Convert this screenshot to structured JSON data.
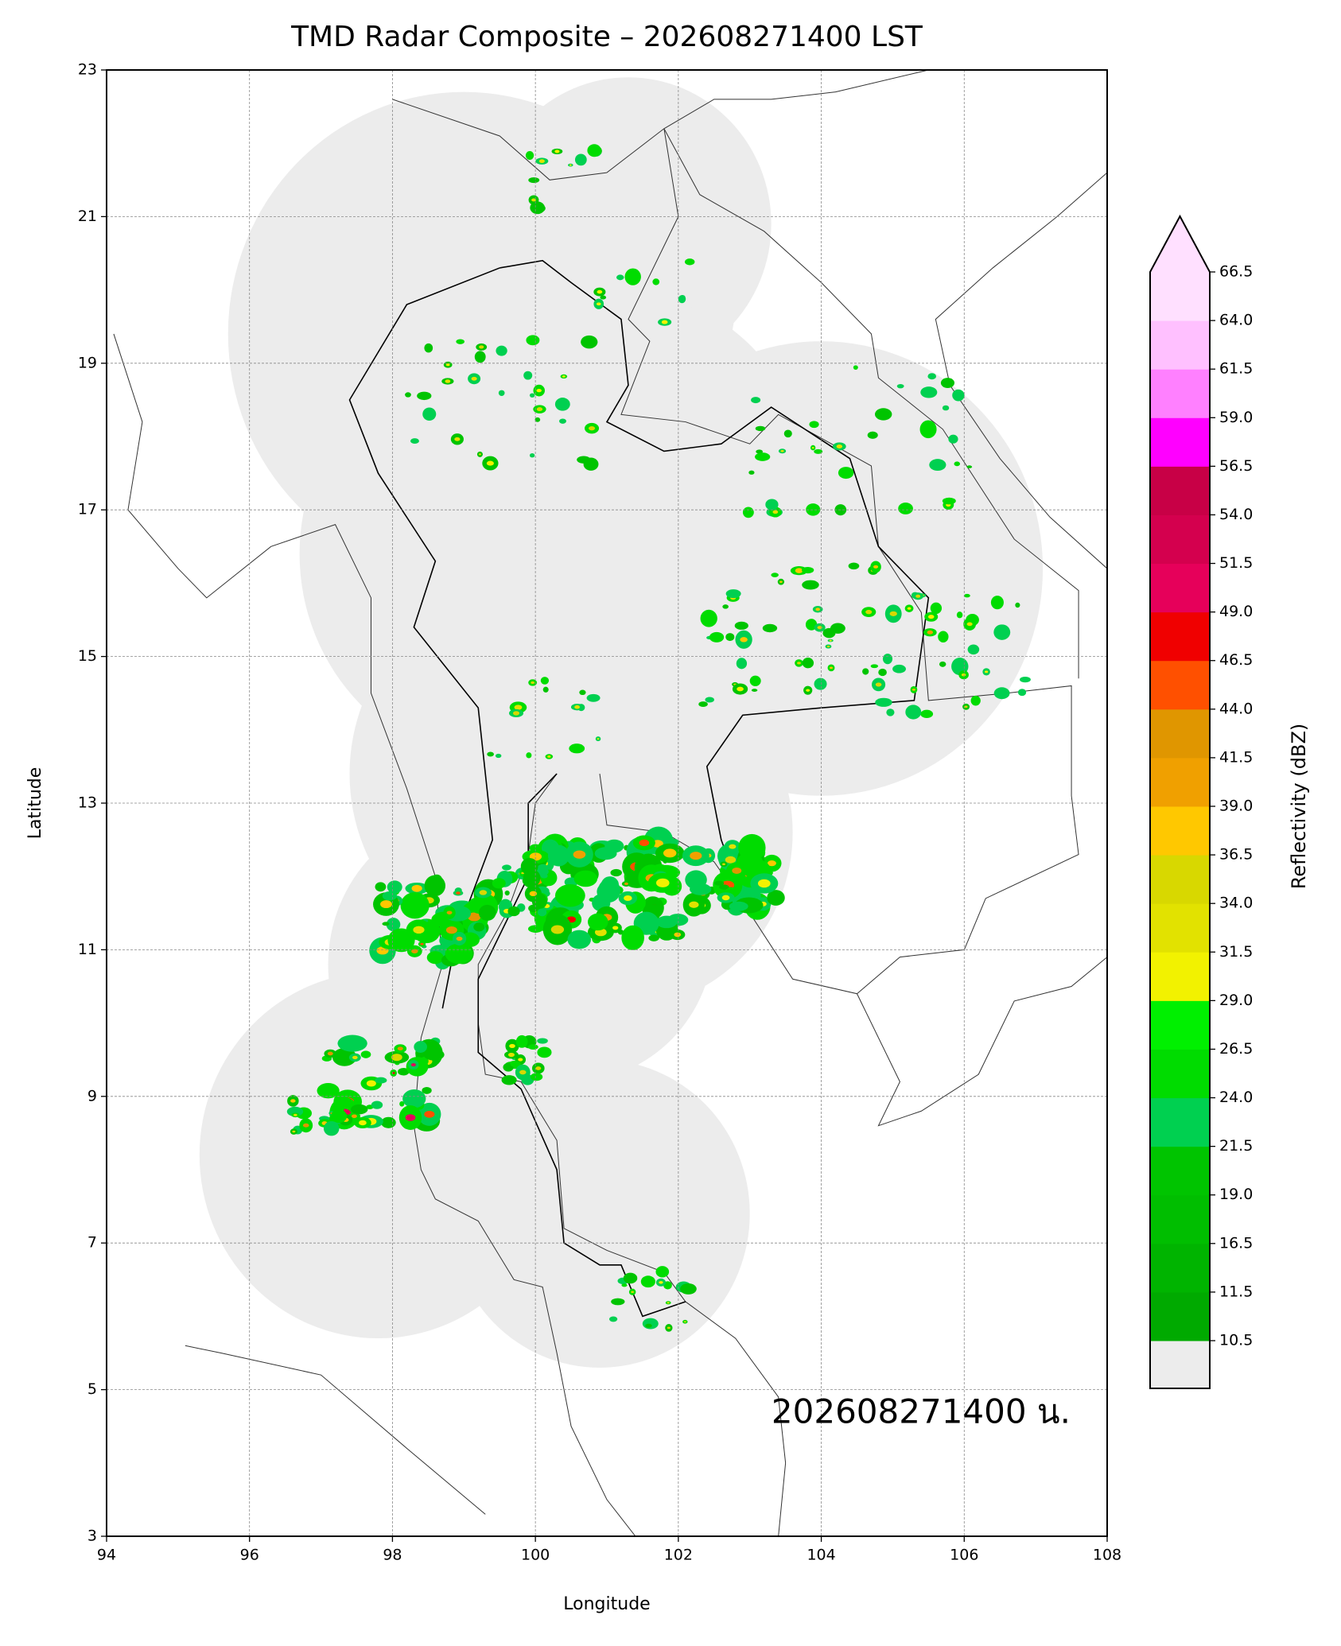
{
  "chart_data": {
    "type": "map",
    "title": "TMD Radar Composite – 202608271400 LST",
    "x_label": "Longitude",
    "y_label": "Latitude",
    "annotation": "202608271400 น.",
    "xlim": [
      94,
      108
    ],
    "ylim": [
      3,
      23
    ],
    "xticks": [
      94,
      96,
      98,
      100,
      102,
      104,
      106,
      108
    ],
    "yticks": [
      3,
      5,
      7,
      9,
      11,
      13,
      15,
      17,
      19,
      21,
      23
    ],
    "grid": true,
    "colorbar": {
      "label": "Reflectivity (dBZ)",
      "levels": [
        10.5,
        11.5,
        16.5,
        19.0,
        21.5,
        24.0,
        26.5,
        29.0,
        31.5,
        34.0,
        36.5,
        39.0,
        41.5,
        44.0,
        46.5,
        49.0,
        51.5,
        54.0,
        56.5,
        59.0,
        61.5,
        64.0,
        66.5
      ],
      "colors": [
        "#00aa00",
        "#00b400",
        "#00be00",
        "#00c400",
        "#00d050",
        "#00dc00",
        "#00f000",
        "#f2f200",
        "#e2e200",
        "#d8d800",
        "#ffc800",
        "#f0a000",
        "#e09600",
        "#ff5000",
        "#f00000",
        "#e6005a",
        "#d4004e",
        "#c80046",
        "#ff00ff",
        "#ff80ff",
        "#ffc0ff",
        "#ffe0ff"
      ],
      "under_color": "#ececec",
      "over_color": "#ffe0ff"
    }
  }
}
